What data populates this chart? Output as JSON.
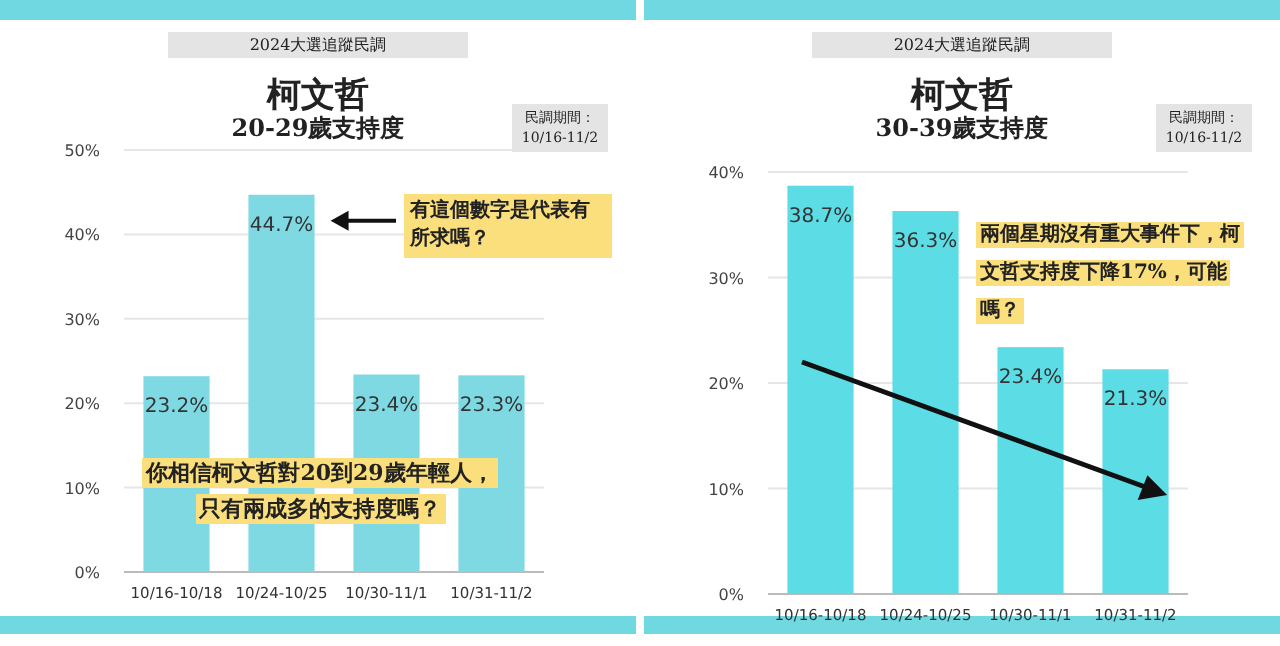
{
  "chart_data": [
    {
      "type": "bar",
      "title": "柯文哲",
      "subtitle": "20-29歲支持度",
      "categories": [
        "10/16-10/18",
        "10/24-10/25",
        "10/30-11/1",
        "10/31-11/2"
      ],
      "values": [
        23.2,
        44.7,
        23.4,
        23.3
      ],
      "value_labels": [
        "23.2%",
        "44.7%",
        "23.4%",
        "23.3%"
      ],
      "color": "#7fd9e2",
      "ylim": [
        0,
        50
      ],
      "yticks": [
        {
          "value": 0,
          "label": "0%"
        },
        {
          "value": 10,
          "label": "10%"
        },
        {
          "value": 20,
          "label": "20%"
        },
        {
          "value": 30,
          "label": "30%"
        },
        {
          "value": 40,
          "label": "40%"
        },
        {
          "value": 50,
          "label": "50%"
        }
      ],
      "grid": "y",
      "annotations": [
        "2024大選追蹤民調",
        "民調期間：10/16-11/2",
        "有這個數字是代表有所求嗎？",
        "你相信柯文哲對20到29歲年輕人，只有兩成多的支持度嗎？"
      ]
    },
    {
      "type": "bar",
      "title": "柯文哲",
      "subtitle": "30-39歲支持度",
      "categories": [
        "10/16-10/18",
        "10/24-10/25",
        "10/30-11/1",
        "10/31-11/2"
      ],
      "values": [
        38.7,
        36.3,
        23.4,
        21.3
      ],
      "value_labels": [
        "38.7%",
        "36.3%",
        "23.4%",
        "21.3%"
      ],
      "color": "#5cdde6",
      "ylim": [
        0,
        40
      ],
      "yticks": [
        {
          "value": 0,
          "label": "0%"
        },
        {
          "value": 10,
          "label": "10%"
        },
        {
          "value": 20,
          "label": "20%"
        },
        {
          "value": 30,
          "label": "30%"
        },
        {
          "value": 40,
          "label": "40%"
        }
      ],
      "grid": "y",
      "annotations": [
        "2024大選追蹤民調",
        "民調期間：10/16-11/2",
        "兩個星期沒有重大事件下，柯文哲支持度下降17%，可能嗎？"
      ]
    }
  ]
}
